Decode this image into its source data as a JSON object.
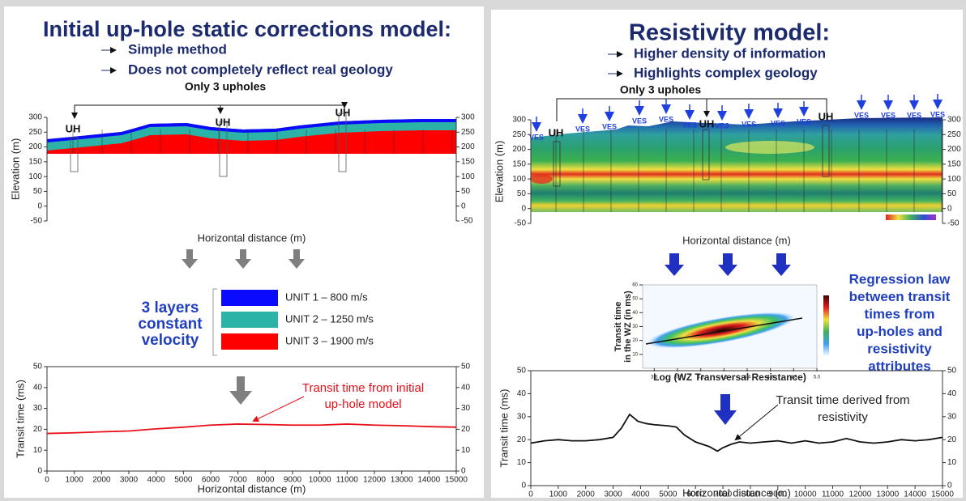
{
  "left_panel": {
    "title": "Initial up-hole static corrections model:",
    "bullets": [
      "Simple method",
      "Does not completely reflect real geology"
    ],
    "bracket_label": "Only 3 upholes",
    "uphole_labels": [
      "UH",
      "UH",
      "UH"
    ],
    "layers_label": [
      "3 layers",
      "constant",
      "velocity"
    ],
    "legend": [
      {
        "label": "UNIT 1 – 800 m/s",
        "color": "#0a0aff"
      },
      {
        "label": "UNIT 2 – 1250 m/s",
        "color": "#2bb3a8"
      },
      {
        "label": "UNIT 3 – 1900 m/s",
        "color": "#ff0000"
      }
    ],
    "annotation": [
      "Transit time from initial",
      "up-hole model"
    ]
  },
  "right_panel": {
    "title": "Resistivity model:",
    "bullets": [
      "Higher density of information",
      "Highlights complex geology"
    ],
    "bracket_label": "Only 3 upholes",
    "well_labels": [
      "VES",
      "UH",
      "VES",
      "VES",
      "VES",
      "VES",
      "VES",
      "UH",
      "VES",
      "VES",
      "VES",
      "VES",
      "UH",
      "VES",
      "VES",
      "VES",
      "VES"
    ],
    "regression_note": [
      "Regression law",
      "between transit",
      "times from",
      "up-holes and",
      "resistivity",
      "attributes"
    ],
    "annotation": [
      "Transit time derived from",
      "resistivity"
    ]
  },
  "chart_data": [
    {
      "type": "section",
      "ylabel": "Elevation (m)",
      "xlabel": "Horizontal distance (m)",
      "ylim": [
        -50,
        300
      ],
      "yticks": [
        -50,
        0,
        50,
        100,
        150,
        200,
        250,
        300
      ],
      "y2lim": [
        -50,
        300
      ],
      "y2ticks": [
        -50,
        0,
        50,
        100,
        150,
        200,
        250,
        300
      ]
    },
    {
      "type": "line",
      "ylabel": "Transit time (ms)",
      "xlabel": "Horizontal distance (m)",
      "x": [
        0,
        1000,
        2000,
        3000,
        4000,
        5000,
        6000,
        7000,
        8000,
        9000,
        10000,
        11000,
        12000,
        13000,
        14000,
        15000
      ],
      "values": [
        18,
        18.3,
        18.8,
        19.2,
        20.2,
        21,
        22,
        22.5,
        22.3,
        22,
        22,
        22.5,
        22,
        21.7,
        21.3,
        21
      ],
      "color": "#e8101a",
      "xlim": [
        0,
        15000
      ],
      "xticks": [
        0,
        1000,
        2000,
        3000,
        4000,
        5000,
        6000,
        7000,
        8000,
        9000,
        10000,
        11000,
        12000,
        13000,
        14000,
        15000
      ],
      "ylim": [
        0,
        50
      ],
      "yticks": [
        0,
        10,
        20,
        30,
        40,
        50
      ],
      "y2lim": [
        0,
        50
      ],
      "y2ticks": [
        0,
        10,
        20,
        30,
        40,
        50
      ]
    },
    {
      "type": "section",
      "ylabel": "Elevation (m)",
      "xlabel": "Horizontal distance (m)",
      "ylim": [
        -50,
        300
      ],
      "yticks": [
        -50,
        0,
        50,
        100,
        150,
        200,
        250,
        300
      ],
      "y2lim": [
        -50,
        300
      ],
      "y2ticks": [
        -50,
        0,
        50,
        100,
        150,
        200,
        250,
        300
      ]
    },
    {
      "type": "density",
      "ylabel": [
        "Transit time",
        "in the WZ (in ms)"
      ],
      "xlabel": "Log (WZ Transversal Resistance)",
      "xlim": [
        3.5,
        5.0
      ],
      "xticks": [
        3.6,
        3.8,
        {
          "value": 4.0,
          "label": "4.0"
        },
        4.2,
        4.4,
        4.6,
        4.8,
        {
          "value": 5.0,
          "label": "5.0"
        }
      ],
      "ylim": [
        0,
        60
      ],
      "yticks": [
        10,
        20,
        30,
        40,
        50,
        60
      ]
    },
    {
      "type": "line",
      "ylabel": "Transit time (ms)",
      "xlabel": "Horizontal distance (m)",
      "x": [
        0,
        500,
        1000,
        1500,
        2000,
        2500,
        3000,
        3300,
        3600,
        3900,
        4200,
        4500,
        5000,
        5300,
        5600,
        6000,
        6500,
        6800,
        7000,
        7300,
        7600,
        8000,
        8500,
        9000,
        9500,
        10000,
        10500,
        11000,
        11500,
        12000,
        12500,
        13000,
        13500,
        14000,
        14500,
        15000
      ],
      "values": [
        18.5,
        19.5,
        20,
        19.5,
        19.5,
        20,
        21,
        25,
        31,
        28,
        27,
        26.5,
        26,
        25.5,
        22,
        19,
        17,
        15,
        16.5,
        18,
        19,
        18.5,
        19,
        19.5,
        18.5,
        19.5,
        18.5,
        19,
        20.5,
        19,
        18.5,
        19,
        20,
        19.5,
        20,
        21
      ],
      "color": "#111111",
      "xlim": [
        0,
        15000
      ],
      "xticks": [
        0,
        1000,
        2000,
        3000,
        4000,
        5000,
        6000,
        7000,
        8000,
        9000,
        10000,
        11000,
        12000,
        13000,
        14000,
        15000
      ],
      "ylim": [
        0,
        50
      ],
      "yticks": [
        0,
        10,
        20,
        30,
        40,
        50
      ],
      "y2lim": [
        0,
        50
      ],
      "y2ticks": [
        0,
        10,
        20,
        30,
        40,
        50
      ]
    }
  ]
}
